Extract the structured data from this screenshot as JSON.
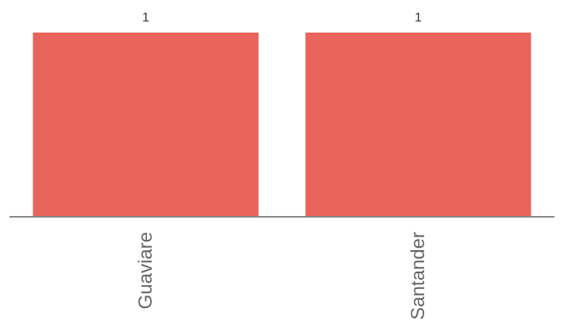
{
  "chart_data": {
    "type": "bar",
    "categories": [
      "Guaviare",
      "Santander"
    ],
    "values": [
      1,
      1
    ],
    "data_labels": [
      "1",
      "1"
    ],
    "ylim": [
      0,
      1
    ],
    "title": "",
    "xlabel": "",
    "ylabel": "",
    "grid": false,
    "legend": "none",
    "colors": {
      "bar": "#e8635a",
      "axis": "#888888",
      "tick_label": "#666666",
      "data_label": "#333333"
    }
  }
}
